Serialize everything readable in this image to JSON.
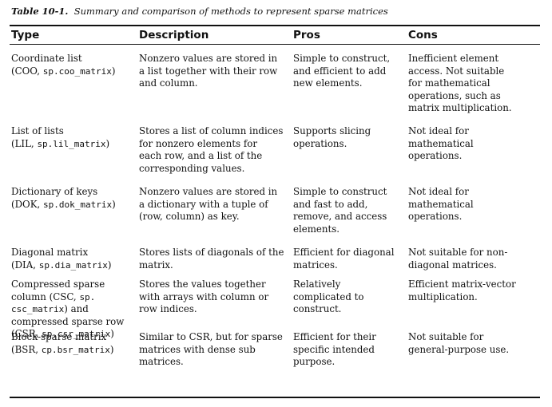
{
  "caption": {
    "label": "Table 10-1.",
    "text": "Summary and comparison of methods to represent sparse matrices"
  },
  "table": {
    "headers": [
      "Type",
      "Description",
      "Pros",
      "Cons"
    ],
    "rows": [
      {
        "type": [
          [
            "Coordinate list"
          ],
          [
            "(COO, ",
            "sp.coo_matrix",
            ")"
          ]
        ],
        "description": [
          "Nonzero values are stored in",
          "a list together with their row",
          "and column."
        ],
        "pros": [
          "Simple to construct,",
          "and efficient to add",
          "new elements."
        ],
        "cons": [
          "Inefficient element",
          "access. Not suitable",
          "for mathematical",
          "operations, such as",
          "matrix multiplication."
        ]
      },
      {
        "type": [
          [
            "List of lists"
          ],
          [
            "(LIL, ",
            "sp.lil_matrix",
            ")"
          ]
        ],
        "description": [
          "Stores a list of column indices",
          "for nonzero elements for",
          "each row, and a list of the",
          "corresponding values."
        ],
        "pros": [
          "Supports slicing",
          "operations."
        ],
        "cons": [
          "Not ideal for",
          "mathematical",
          "operations."
        ]
      },
      {
        "type": [
          [
            "Dictionary of keys"
          ],
          [
            "(DOK, ",
            "sp.dok_matrix",
            ")"
          ]
        ],
        "description": [
          "Nonzero values are stored in",
          "a dictionary with a tuple of",
          "(row, column) as key."
        ],
        "pros": [
          "Simple to construct",
          "and fast to add,",
          "remove, and access",
          "elements."
        ],
        "cons": [
          "Not ideal for",
          "mathematical",
          "operations."
        ]
      },
      {
        "type": [
          [
            "Diagonal matrix"
          ],
          [
            "(DIA, ",
            "sp.dia_matrix",
            ")"
          ]
        ],
        "description": [
          "Stores lists of diagonals of the",
          "matrix."
        ],
        "pros": [
          "Efficient for diagonal",
          "matrices."
        ],
        "cons": [
          "Not suitable for non-",
          "diagonal matrices."
        ]
      },
      {
        "type": [
          [
            "Compressed sparse"
          ],
          [
            "column (CSC, ",
            "sp.",
            ""
          ],
          [
            "",
            "csc_matrix",
            ") and"
          ],
          [
            "compressed sparse row"
          ],
          [
            "(CSR, ",
            "sp.csr_matrix",
            ")"
          ]
        ],
        "description": [
          "Stores the values together",
          "with arrays with column or",
          "row indices."
        ],
        "pros": [
          "Relatively",
          "complicated to",
          "construct."
        ],
        "cons": [
          "Efficient matrix-vector",
          "multiplication."
        ]
      },
      {
        "type": [
          [
            "Block-sparse matrix"
          ],
          [
            "(BSR, ",
            "cp.bsr_matrix",
            ")"
          ]
        ],
        "description": [
          "Similar to CSR, but for sparse",
          "matrices with dense sub",
          "matrices."
        ],
        "pros": [
          "Efficient for their",
          "specific intended",
          "purpose."
        ],
        "cons": [
          "Not suitable for",
          "general-purpose use."
        ]
      }
    ]
  }
}
